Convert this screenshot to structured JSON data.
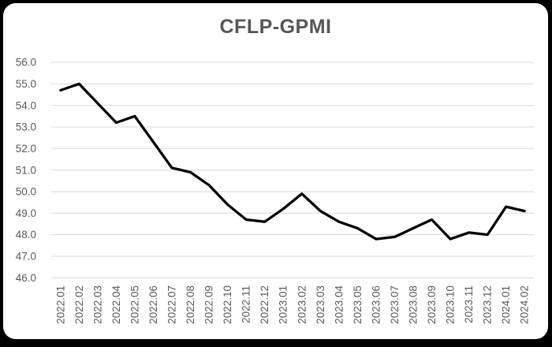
{
  "window": {
    "outer_background": "#000000",
    "panel_background": "#ffffff"
  },
  "chart_data": {
    "type": "line",
    "title": "CFLP-GPMI",
    "title_color": "#565656",
    "legend": "none",
    "grid": "horizontal",
    "gridline_color": "#d9d9d9",
    "axis_label_color": "#595959",
    "ylim": [
      46.0,
      56.0
    ],
    "ytick_step": 1.0,
    "ytick_labels": [
      "56.0",
      "55.0",
      "54.0",
      "53.0",
      "52.0",
      "51.0",
      "50.0",
      "49.0",
      "48.0",
      "47.0",
      "46.0"
    ],
    "categories": [
      "2022.01",
      "2022.02",
      "2022.03",
      "2022.04",
      "2022.05",
      "2022.06",
      "2022.07",
      "2022.08",
      "2022.09",
      "2022.10",
      "2022.11",
      "2022.12",
      "2023.01",
      "2023.02",
      "2023.03",
      "2023.04",
      "2023.05",
      "2023.06",
      "2023.07",
      "2023.08",
      "2023.09",
      "2023.10",
      "2023.11",
      "2023.12",
      "2024.01",
      "2024.02"
    ],
    "series": [
      {
        "name": "CFLP-GPMI",
        "color": "#000000",
        "line_width": 3.3,
        "values": [
          54.7,
          55.0,
          54.1,
          53.2,
          53.5,
          52.3,
          51.1,
          50.9,
          50.3,
          49.4,
          48.7,
          48.6,
          49.2,
          49.9,
          49.1,
          48.6,
          48.3,
          47.8,
          47.9,
          48.3,
          48.7,
          47.8,
          48.1,
          48.0,
          49.3,
          49.1
        ]
      }
    ]
  }
}
